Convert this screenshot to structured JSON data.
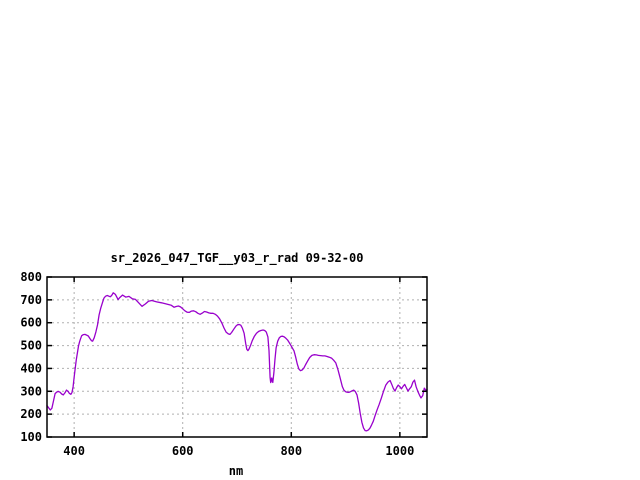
{
  "page": {
    "background": "#ffffff"
  },
  "chart_data": {
    "type": "line",
    "title": "sr_2026_047_TGF__y03_r_rad 09-32-00",
    "xlabel": "nm",
    "ylabel": "",
    "xlim": [
      350,
      1050
    ],
    "ylim": [
      100,
      800
    ],
    "x_ticks": [
      400,
      600,
      800,
      1000
    ],
    "y_ticks": [
      100,
      200,
      300,
      400,
      500,
      600,
      700,
      800
    ],
    "grid": true,
    "grid_color": "#b0b0b0",
    "axis_color": "#000000",
    "text_color": "#000000",
    "legend_position": "none",
    "series": [
      {
        "color": "#9900cc",
        "points": [
          [
            350,
            237
          ],
          [
            353,
            228
          ],
          [
            356,
            218
          ],
          [
            359,
            226
          ],
          [
            362,
            258
          ],
          [
            365,
            290
          ],
          [
            368,
            297
          ],
          [
            371,
            299
          ],
          [
            374,
            296
          ],
          [
            377,
            288
          ],
          [
            380,
            284
          ],
          [
            383,
            293
          ],
          [
            386,
            305
          ],
          [
            389,
            299
          ],
          [
            391,
            291
          ],
          [
            394,
            287
          ],
          [
            396,
            295
          ],
          [
            398,
            320
          ],
          [
            400,
            360
          ],
          [
            402,
            400
          ],
          [
            404,
            438
          ],
          [
            406,
            468
          ],
          [
            408,
            498
          ],
          [
            410,
            517
          ],
          [
            412,
            532
          ],
          [
            414,
            543
          ],
          [
            417,
            548
          ],
          [
            420,
            549
          ],
          [
            423,
            546
          ],
          [
            426,
            542
          ],
          [
            429,
            531
          ],
          [
            432,
            521
          ],
          [
            434,
            519
          ],
          [
            437,
            534
          ],
          [
            440,
            560
          ],
          [
            443,
            590
          ],
          [
            446,
            634
          ],
          [
            449,
            663
          ],
          [
            452,
            687
          ],
          [
            455,
            708
          ],
          [
            458,
            716
          ],
          [
            461,
            719
          ],
          [
            464,
            716
          ],
          [
            467,
            714
          ],
          [
            470,
            722
          ],
          [
            472,
            731
          ],
          [
            476,
            724
          ],
          [
            481,
            701
          ],
          [
            484,
            710
          ],
          [
            489,
            721
          ],
          [
            495,
            712
          ],
          [
            501,
            715
          ],
          [
            507,
            705
          ],
          [
            513,
            702
          ],
          [
            519,
            687
          ],
          [
            525,
            672
          ],
          [
            531,
            682
          ],
          [
            537,
            694
          ],
          [
            543,
            697
          ],
          [
            552,
            691
          ],
          [
            561,
            687
          ],
          [
            570,
            682
          ],
          [
            579,
            676
          ],
          [
            584,
            668
          ],
          [
            588,
            671
          ],
          [
            592,
            673
          ],
          [
            596,
            669
          ],
          [
            600,
            661
          ],
          [
            604,
            652
          ],
          [
            608,
            646
          ],
          [
            612,
            645
          ],
          [
            616,
            651
          ],
          [
            620,
            652
          ],
          [
            624,
            648
          ],
          [
            628,
            641
          ],
          [
            632,
            637
          ],
          [
            636,
            642
          ],
          [
            640,
            649
          ],
          [
            644,
            647
          ],
          [
            648,
            643
          ],
          [
            652,
            641
          ],
          [
            656,
            641
          ],
          [
            660,
            637
          ],
          [
            664,
            629
          ],
          [
            668,
            617
          ],
          [
            672,
            599
          ],
          [
            676,
            577
          ],
          [
            680,
            559
          ],
          [
            684,
            551
          ],
          [
            687,
            549
          ],
          [
            690,
            557
          ],
          [
            694,
            571
          ],
          [
            698,
            585
          ],
          [
            701,
            591
          ],
          [
            704,
            592
          ],
          [
            707,
            589
          ],
          [
            710,
            576
          ],
          [
            713,
            554
          ],
          [
            716,
            509
          ],
          [
            718,
            484
          ],
          [
            720,
            478
          ],
          [
            722,
            484
          ],
          [
            725,
            501
          ],
          [
            728,
            521
          ],
          [
            732,
            541
          ],
          [
            736,
            554
          ],
          [
            740,
            562
          ],
          [
            744,
            566
          ],
          [
            748,
            568
          ],
          [
            751,
            566
          ],
          [
            754,
            559
          ],
          [
            757,
            538
          ],
          [
            759,
            478
          ],
          [
            761,
            360
          ],
          [
            762,
            338
          ],
          [
            763,
            348
          ],
          [
            764,
            358
          ],
          [
            765,
            344
          ],
          [
            766,
            339
          ],
          [
            768,
            382
          ],
          [
            770,
            441
          ],
          [
            772,
            490
          ],
          [
            775,
            519
          ],
          [
            778,
            534
          ],
          [
            781,
            540
          ],
          [
            784,
            541
          ],
          [
            787,
            538
          ],
          [
            790,
            532
          ],
          [
            793,
            525
          ],
          [
            796,
            514
          ],
          [
            799,
            502
          ],
          [
            802,
            489
          ],
          [
            805,
            477
          ],
          [
            808,
            451
          ],
          [
            811,
            419
          ],
          [
            814,
            397
          ],
          [
            817,
            390
          ],
          [
            820,
            393
          ],
          [
            823,
            401
          ],
          [
            826,
            415
          ],
          [
            830,
            432
          ],
          [
            834,
            448
          ],
          [
            838,
            457
          ],
          [
            842,
            460
          ],
          [
            846,
            459
          ],
          [
            850,
            457
          ],
          [
            854,
            456
          ],
          [
            858,
            455
          ],
          [
            862,
            455
          ],
          [
            866,
            452
          ],
          [
            870,
            449
          ],
          [
            874,
            445
          ],
          [
            878,
            436
          ],
          [
            882,
            424
          ],
          [
            886,
            394
          ],
          [
            890,
            359
          ],
          [
            894,
            321
          ],
          [
            897,
            305
          ],
          [
            900,
            298
          ],
          [
            903,
            296
          ],
          [
            906,
            295
          ],
          [
            909,
            298
          ],
          [
            912,
            302
          ],
          [
            915,
            305
          ],
          [
            918,
            299
          ],
          [
            921,
            284
          ],
          [
            924,
            249
          ],
          [
            927,
            204
          ],
          [
            930,
            164
          ],
          [
            933,
            140
          ],
          [
            936,
            128
          ],
          [
            939,
            127
          ],
          [
            942,
            131
          ],
          [
            945,
            139
          ],
          [
            948,
            153
          ],
          [
            951,
            169
          ],
          [
            954,
            191
          ],
          [
            958,
            219
          ],
          [
            962,
            243
          ],
          [
            966,
            271
          ],
          [
            970,
            301
          ],
          [
            974,
            326
          ],
          [
            978,
            340
          ],
          [
            982,
            347
          ],
          [
            985,
            331
          ],
          [
            988,
            313
          ],
          [
            991,
            301
          ],
          [
            994,
            316
          ],
          [
            997,
            327
          ],
          [
            1000,
            320
          ],
          [
            1003,
            311
          ],
          [
            1006,
            322
          ],
          [
            1009,
            330
          ],
          [
            1012,
            315
          ],
          [
            1015,
            301
          ],
          [
            1018,
            311
          ],
          [
            1021,
            320
          ],
          [
            1024,
            340
          ],
          [
            1027,
            349
          ],
          [
            1030,
            320
          ],
          [
            1033,
            300
          ],
          [
            1036,
            284
          ],
          [
            1039,
            271
          ],
          [
            1042,
            281
          ],
          [
            1045,
            314
          ],
          [
            1048,
            304
          ],
          [
            1050,
            308
          ]
        ]
      }
    ]
  }
}
